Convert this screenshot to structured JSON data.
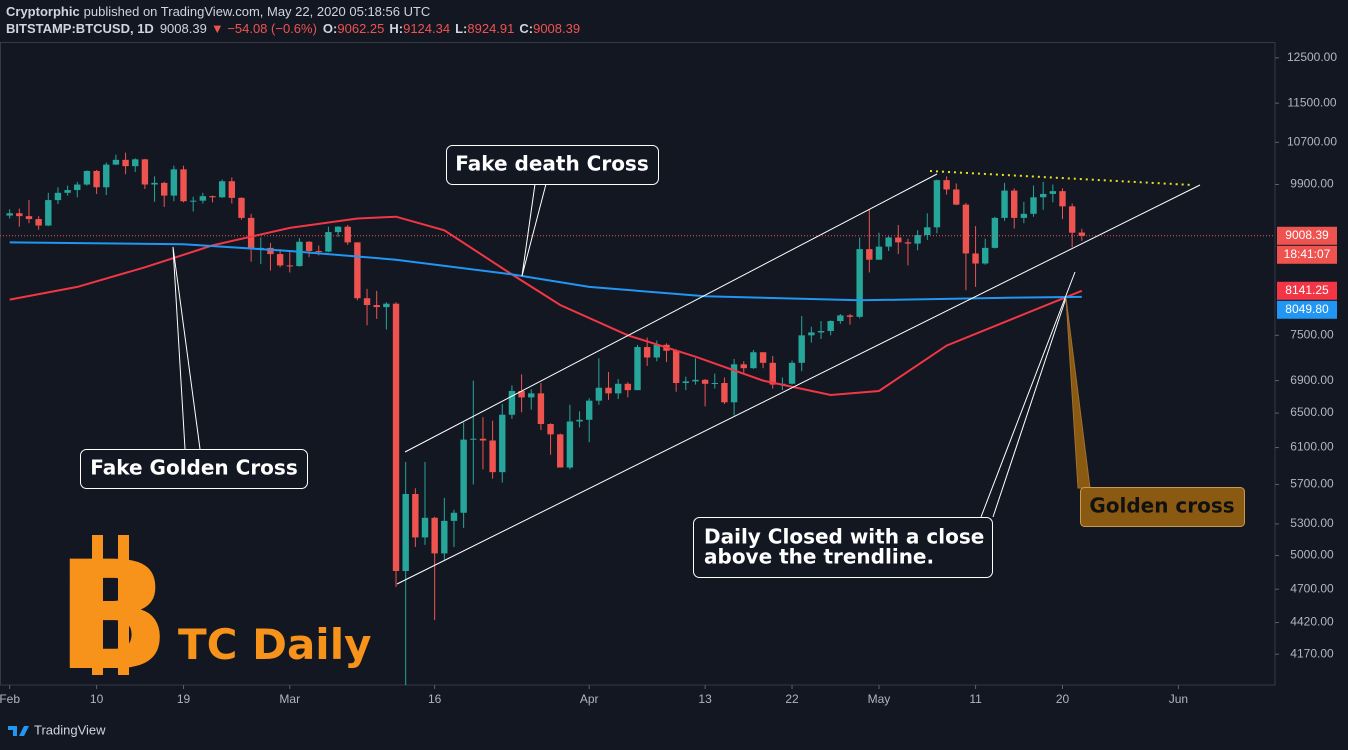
{
  "header": {
    "author": "Cryptorphic",
    "published": "published on TradingView.com, May 22, 2020 05:18:56 UTC",
    "symbol": "BITSTAMP:BTCUSD, 1D",
    "change": "▼ −54.08 (−0.6%)",
    "o_label": "O:",
    "h_label": "H:",
    "l_label": "L:",
    "c_label": "C:"
  },
  "annotations": {
    "fake_death_cross": "Fake death Cross",
    "fake_golden_cross": "Fake Golden Cross",
    "daily_closed": [
      "Daily Closed with a close",
      "above the trendline."
    ],
    "golden_cross": "Golden cross"
  },
  "logo": {
    "symbol": "B",
    "text": "TC Daily"
  },
  "footer": "TradingView",
  "chart_data": {
    "type": "candlestick",
    "up_color": "#26a69a",
    "down_color": "#ef5350",
    "log_scale": true,
    "grid": false,
    "xlim": [
      "2020-01-31",
      "2020-06-11"
    ],
    "ylim": [
      3940,
      12870
    ],
    "xticks": [
      {
        "value": "2020-02-01",
        "label": "Feb"
      },
      {
        "value": "2020-02-10",
        "label": "10"
      },
      {
        "value": "2020-02-19",
        "label": "19"
      },
      {
        "value": "2020-03-01",
        "label": "Mar"
      },
      {
        "value": "2020-03-16",
        "label": "16"
      },
      {
        "value": "2020-04-01",
        "label": "Apr"
      },
      {
        "value": "2020-04-13",
        "label": "13"
      },
      {
        "value": "2020-04-22",
        "label": "22"
      },
      {
        "value": "2020-05-01",
        "label": "May"
      },
      {
        "value": "2020-05-11",
        "label": "11"
      },
      {
        "value": "2020-05-20",
        "label": "20"
      },
      {
        "value": "2020-06-01",
        "label": "Jun"
      }
    ],
    "yticks": [
      {
        "value": 4170,
        "label": "4170.00"
      },
      {
        "value": 4420,
        "label": "4420.00"
      },
      {
        "value": 4700,
        "label": "4700.00"
      },
      {
        "value": 5000,
        "label": "5000.00"
      },
      {
        "value": 5300,
        "label": "5300.00"
      },
      {
        "value": 5700,
        "label": "5700.00"
      },
      {
        "value": 6100,
        "label": "6100.00"
      },
      {
        "value": 6500,
        "label": "6500.00"
      },
      {
        "value": 6900,
        "label": "6900.00"
      },
      {
        "value": 7500,
        "label": "7500.00"
      },
      {
        "value": 9900,
        "label": "9900.00"
      },
      {
        "value": 10700,
        "label": "10700.00"
      },
      {
        "value": 11500,
        "label": "11500.00"
      },
      {
        "value": 12500,
        "label": "12500.00"
      }
    ],
    "countdown": "18:41:07",
    "x": [
      "2020-02-01",
      "2020-02-02",
      "2020-02-03",
      "2020-02-04",
      "2020-02-05",
      "2020-02-06",
      "2020-02-07",
      "2020-02-08",
      "2020-02-09",
      "2020-02-10",
      "2020-02-11",
      "2020-02-12",
      "2020-02-13",
      "2020-02-14",
      "2020-02-15",
      "2020-02-16",
      "2020-02-17",
      "2020-02-18",
      "2020-02-19",
      "2020-02-20",
      "2020-02-21",
      "2020-02-22",
      "2020-02-23",
      "2020-02-24",
      "2020-02-25",
      "2020-02-26",
      "2020-02-27",
      "2020-02-28",
      "2020-02-29",
      "2020-03-01",
      "2020-03-02",
      "2020-03-03",
      "2020-03-04",
      "2020-03-05",
      "2020-03-06",
      "2020-03-07",
      "2020-03-08",
      "2020-03-09",
      "2020-03-10",
      "2020-03-11",
      "2020-03-12",
      "2020-03-13",
      "2020-03-14",
      "2020-03-15",
      "2020-03-16",
      "2020-03-17",
      "2020-03-18",
      "2020-03-19",
      "2020-03-20",
      "2020-03-21",
      "2020-03-22",
      "2020-03-23",
      "2020-03-24",
      "2020-03-25",
      "2020-03-26",
      "2020-03-27",
      "2020-03-28",
      "2020-03-29",
      "2020-03-30",
      "2020-03-31",
      "2020-04-01",
      "2020-04-02",
      "2020-04-03",
      "2020-04-04",
      "2020-04-05",
      "2020-04-06",
      "2020-04-07",
      "2020-04-08",
      "2020-04-09",
      "2020-04-10",
      "2020-04-11",
      "2020-04-12",
      "2020-04-13",
      "2020-04-14",
      "2020-04-15",
      "2020-04-16",
      "2020-04-17",
      "2020-04-18",
      "2020-04-19",
      "2020-04-20",
      "2020-04-21",
      "2020-04-22",
      "2020-04-23",
      "2020-04-24",
      "2020-04-25",
      "2020-04-26",
      "2020-04-27",
      "2020-04-28",
      "2020-04-29",
      "2020-04-30",
      "2020-05-01",
      "2020-05-02",
      "2020-05-03",
      "2020-05-04",
      "2020-05-05",
      "2020-05-06",
      "2020-05-07",
      "2020-05-08",
      "2020-05-09",
      "2020-05-10",
      "2020-05-11",
      "2020-05-12",
      "2020-05-13",
      "2020-05-14",
      "2020-05-15",
      "2020-05-16",
      "2020-05-17",
      "2020-05-18",
      "2020-05-19",
      "2020-05-20",
      "2020-05-21",
      "2020-05-22"
    ],
    "open": [
      9350,
      9390,
      9340,
      9290,
      9180,
      9620,
      9750,
      9800,
      9900,
      10150,
      9850,
      10270,
      10360,
      10240,
      10370,
      9900,
      9930,
      9700,
      10180,
      9600,
      9610,
      9690,
      9670,
      9960,
      9660,
      9310,
      8790,
      8810,
      8710,
      8530,
      8520,
      8910,
      8760,
      8750,
      9070,
      9160,
      8900,
      8030,
      7930,
      7900,
      7950,
      4860,
      5600,
      5170,
      5360,
      5020,
      5330,
      5410,
      6190,
      6200,
      6180,
      5830,
      6480,
      6770,
      6690,
      6740,
      6370,
      6250,
      5880,
      6400,
      6420,
      6650,
      6810,
      6740,
      6860,
      6780,
      7340,
      7200,
      7370,
      7290,
      6870,
      6890,
      6910,
      6860,
      6870,
      6630,
      7110,
      7060,
      7270,
      7130,
      6850,
      6860,
      7130,
      7500,
      7540,
      7560,
      7700,
      7780,
      7760,
      8790,
      8620,
      8830,
      8980,
      8900,
      8880,
      9020,
      9150,
      9980,
      9810,
      9540,
      8720,
      8560,
      8810,
      9310,
      9790,
      9310,
      9380,
      9670,
      9730,
      9780,
      9510,
      9062.25
    ],
    "high": [
      9460,
      9470,
      9620,
      9340,
      9750,
      9850,
      9880,
      9950,
      10160,
      10170,
      10310,
      10460,
      10500,
      10390,
      10380,
      10050,
      9950,
      10250,
      10250,
      9680,
      9750,
      9700,
      9990,
      10030,
      9670,
      9380,
      8980,
      8890,
      8790,
      8750,
      8970,
      8920,
      8850,
      9160,
      9170,
      9190,
      8900,
      8170,
      8140,
      7970,
      7970,
      5940,
      5660,
      5940,
      5370,
      5560,
      5440,
      6390,
      6900,
      6450,
      6410,
      6610,
      6840,
      6980,
      6790,
      6870,
      6380,
      6260,
      6600,
      6520,
      6680,
      7190,
      7010,
      6920,
      6880,
      7370,
      7470,
      7430,
      7390,
      7310,
      6950,
      7190,
      6920,
      6990,
      6940,
      7180,
      7150,
      7300,
      7270,
      7220,
      6940,
      7160,
      7770,
      7620,
      7700,
      7710,
      7800,
      7800,
      8980,
      9460,
      9060,
      9000,
      9190,
      8960,
      9100,
      9390,
      9990,
      10050,
      9920,
      9570,
      9170,
      8960,
      9330,
      9930,
      9830,
      9590,
      9880,
      9950,
      9900,
      9830,
      9560,
      9124.34
    ],
    "low": [
      9300,
      9160,
      9220,
      9110,
      9170,
      9550,
      9700,
      9670,
      9880,
      9730,
      9710,
      10260,
      10090,
      10130,
      9820,
      9590,
      9500,
      9600,
      9580,
      9420,
      9560,
      9580,
      9660,
      9560,
      9280,
      8590,
      8550,
      8450,
      8500,
      8420,
      8510,
      8660,
      8690,
      8740,
      8990,
      8860,
      8000,
      7640,
      7730,
      7580,
      4720,
      3850,
      5080,
      5100,
      4440,
      4960,
      5080,
      5260,
      5700,
      5860,
      5760,
      5720,
      6430,
      6510,
      6540,
      6300,
      6020,
      5880,
      5860,
      6330,
      6160,
      6600,
      6660,
      6670,
      6690,
      6780,
      7090,
      7150,
      7140,
      6760,
      6780,
      6850,
      6580,
      6800,
      6610,
      6470,
      7000,
      7050,
      7060,
      6800,
      6780,
      6850,
      7020,
      7400,
      7450,
      7500,
      7660,
      7650,
      7740,
      8420,
      8620,
      8760,
      8710,
      8530,
      8770,
      8940,
      9050,
      9720,
      9530,
      8150,
      8200,
      8540,
      8800,
      9260,
      9130,
      9220,
      9330,
      9450,
      9580,
      9290,
      8820,
      8924.91
    ],
    "close": [
      9390,
      9340,
      9290,
      9180,
      9620,
      9750,
      9800,
      9900,
      10150,
      9850,
      10270,
      10360,
      10240,
      10370,
      9900,
      9930,
      9700,
      10180,
      9600,
      9610,
      9690,
      9670,
      9960,
      9660,
      9310,
      8790,
      8810,
      8710,
      8530,
      8520,
      8910,
      8760,
      8750,
      9070,
      9160,
      8900,
      8030,
      7930,
      7900,
      7950,
      4860,
      5600,
      5170,
      5360,
      5020,
      5330,
      5410,
      6190,
      6200,
      6180,
      5830,
      6480,
      6770,
      6690,
      6740,
      6370,
      6250,
      5880,
      6400,
      6420,
      6650,
      6810,
      6740,
      6860,
      6780,
      7340,
      7200,
      7370,
      7290,
      6870,
      6890,
      6910,
      6860,
      6870,
      6630,
      7110,
      7060,
      7270,
      7130,
      6850,
      6860,
      7130,
      7500,
      7540,
      7560,
      7700,
      7780,
      7760,
      8790,
      8620,
      8830,
      8980,
      8900,
      8880,
      9020,
      9150,
      9980,
      9810,
      9540,
      8720,
      8560,
      8810,
      9310,
      9790,
      9310,
      9380,
      9670,
      9730,
      9780,
      9510,
      9060,
      9008.39
    ],
    "series": [
      {
        "color": "#f23645",
        "x": [
          "2020-02-01",
          "2020-02-08",
          "2020-02-15",
          "2020-02-22",
          "2020-03-01",
          "2020-03-08",
          "2020-03-12",
          "2020-03-17",
          "2020-03-24",
          "2020-03-29",
          "2020-04-05",
          "2020-04-12",
          "2020-04-19",
          "2020-04-26",
          "2020-05-01",
          "2020-05-08",
          "2020-05-15",
          "2020-05-22"
        ],
        "values": [
          8010,
          8200,
          8500,
          8850,
          9140,
          9300,
          9330,
          9100,
          8390,
          7930,
          7500,
          7210,
          6900,
          6720,
          6770,
          7360,
          7740,
          8141.25
        ]
      },
      {
        "color": "#2196f3",
        "x": [
          "2020-02-01",
          "2020-02-19",
          "2020-03-01",
          "2020-03-12",
          "2020-03-24",
          "2020-04-01",
          "2020-04-13",
          "2020-04-29",
          "2020-05-08",
          "2020-05-15",
          "2020-05-22"
        ],
        "values": [
          8900,
          8870,
          8760,
          8620,
          8390,
          8200,
          8060,
          8000,
          8020,
          8040,
          8049.8
        ],
        "value_labels": [
          null,
          null,
          null,
          null,
          null,
          null,
          null,
          null,
          null,
          null,
          "8049.80"
        ]
      }
    ]
  }
}
